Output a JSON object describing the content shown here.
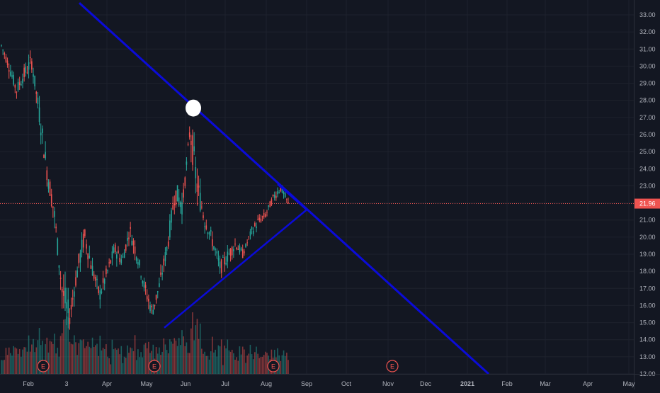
{
  "chart_data": {
    "type": "candlestick",
    "title": "",
    "ylim": [
      12,
      33.6
    ],
    "y_ticks": [
      "33.00",
      "32.00",
      "31.00",
      "30.00",
      "29.00",
      "28.00",
      "27.00",
      "26.00",
      "25.00",
      "24.00",
      "23.00",
      "22.00",
      "21.00",
      "20.00",
      "19.00",
      "18.00",
      "17.00",
      "16.00",
      "15.00",
      "14.00",
      "13.00",
      "12.00"
    ],
    "x_labels": [
      "Feb",
      "3",
      "Apr",
      "May",
      "Jun",
      "Jul",
      "Aug",
      "Sep",
      "Oct",
      "Nov",
      "Dec",
      "2021",
      "Feb",
      "Mar",
      "Apr",
      "May"
    ],
    "last_price_label": "21.96",
    "last_price": 21.96,
    "earnings_marker_label": "E",
    "earnings_markers_at": [
      "Feb",
      "May",
      "Aug",
      "Nov"
    ],
    "price_series": [
      {
        "t": "Jan",
        "o": 30.8,
        "h": 31.7,
        "l": 30.2,
        "c": 31.2
      },
      {
        "t": "Jan",
        "o": 31.2,
        "h": 31.6,
        "l": 29.6,
        "c": 30.0
      },
      {
        "t": "Jan",
        "o": 30.0,
        "h": 30.3,
        "l": 28.2,
        "c": 28.6
      },
      {
        "t": "Feb",
        "o": 28.6,
        "h": 29.8,
        "l": 27.3,
        "c": 29.5
      },
      {
        "t": "Feb",
        "o": 29.5,
        "h": 31.3,
        "l": 28.7,
        "c": 30.3
      },
      {
        "t": "Feb",
        "o": 30.3,
        "h": 30.6,
        "l": 27.0,
        "c": 27.3
      },
      {
        "t": "Feb",
        "o": 27.3,
        "h": 27.5,
        "l": 23.8,
        "c": 24.0
      },
      {
        "t": "Mar",
        "o": 24.0,
        "h": 24.4,
        "l": 21.0,
        "c": 21.4
      },
      {
        "t": "Mar",
        "o": 21.4,
        "h": 21.6,
        "l": 16.5,
        "c": 17.0
      },
      {
        "t": "Mar",
        "o": 17.0,
        "h": 17.4,
        "l": 14.6,
        "c": 15.2
      },
      {
        "t": "Mar",
        "o": 15.2,
        "h": 18.3,
        "l": 14.8,
        "c": 17.9
      },
      {
        "t": "Mar",
        "o": 17.9,
        "h": 20.6,
        "l": 17.4,
        "c": 20.1
      },
      {
        "t": "Apr",
        "o": 20.1,
        "h": 20.3,
        "l": 17.6,
        "c": 18.2
      },
      {
        "t": "Apr",
        "o": 18.2,
        "h": 18.6,
        "l": 16.0,
        "c": 16.6
      },
      {
        "t": "Apr",
        "o": 16.6,
        "h": 18.4,
        "l": 16.3,
        "c": 17.9
      },
      {
        "t": "Apr",
        "o": 17.9,
        "h": 19.8,
        "l": 17.5,
        "c": 19.3
      },
      {
        "t": "May",
        "o": 19.3,
        "h": 20.1,
        "l": 18.2,
        "c": 18.6
      },
      {
        "t": "May",
        "o": 18.6,
        "h": 20.9,
        "l": 18.3,
        "c": 20.4
      },
      {
        "t": "May",
        "o": 20.4,
        "h": 20.6,
        "l": 18.5,
        "c": 18.9
      },
      {
        "t": "May",
        "o": 18.9,
        "h": 19.1,
        "l": 16.6,
        "c": 17.0
      },
      {
        "t": "May",
        "o": 17.0,
        "h": 17.2,
        "l": 15.1,
        "c": 15.6
      },
      {
        "t": "May",
        "o": 15.6,
        "h": 17.7,
        "l": 15.3,
        "c": 17.3
      },
      {
        "t": "May",
        "o": 17.3,
        "h": 19.9,
        "l": 17.0,
        "c": 19.5
      },
      {
        "t": "Jun",
        "o": 19.5,
        "h": 23.0,
        "l": 19.2,
        "c": 22.6
      },
      {
        "t": "Jun",
        "o": 22.6,
        "h": 23.4,
        "l": 21.3,
        "c": 21.9
      },
      {
        "t": "Jun",
        "o": 21.9,
        "h": 26.8,
        "l": 21.6,
        "c": 26.3
      },
      {
        "t": "Jun",
        "o": 26.3,
        "h": 26.4,
        "l": 22.4,
        "c": 22.8
      },
      {
        "t": "Jun",
        "o": 22.8,
        "h": 23.0,
        "l": 20.6,
        "c": 21.0
      },
      {
        "t": "Jun",
        "o": 21.0,
        "h": 21.6,
        "l": 19.3,
        "c": 19.7
      },
      {
        "t": "Jul",
        "o": 19.7,
        "h": 20.0,
        "l": 17.7,
        "c": 18.2
      },
      {
        "t": "Jul",
        "o": 18.2,
        "h": 19.3,
        "l": 17.3,
        "c": 18.9
      },
      {
        "t": "Jul",
        "o": 18.9,
        "h": 20.0,
        "l": 18.4,
        "c": 19.6
      },
      {
        "t": "Jul",
        "o": 19.6,
        "h": 19.8,
        "l": 18.7,
        "c": 19.0
      },
      {
        "t": "Jul",
        "o": 19.0,
        "h": 20.5,
        "l": 18.8,
        "c": 20.2
      },
      {
        "t": "Jul",
        "o": 20.2,
        "h": 21.2,
        "l": 19.9,
        "c": 20.9
      },
      {
        "t": "Aug",
        "o": 20.9,
        "h": 21.6,
        "l": 20.4,
        "c": 21.3
      },
      {
        "t": "Aug",
        "o": 21.3,
        "h": 22.6,
        "l": 21.0,
        "c": 22.3
      },
      {
        "t": "Aug",
        "o": 22.3,
        "h": 23.2,
        "l": 21.9,
        "c": 22.9
      },
      {
        "t": "Aug",
        "o": 22.9,
        "h": 23.0,
        "l": 21.8,
        "c": 21.96
      }
    ],
    "volume_note": "",
    "trendlines": [
      {
        "name": "",
        "color": "#0b0bd8"
      },
      {
        "name": "",
        "color": "#0b0bd8"
      },
      {
        "name": "",
        "color": "#0b0bd8"
      }
    ],
    "colors": {
      "background": "#131722",
      "up": "#26a69a",
      "down": "#ef5350",
      "up_volume": "#26a69a80",
      "down_volume": "#ef535080",
      "grid": "#1e222d",
      "axis_text": "#b2b5be",
      "last_price_line": "#ef5350",
      "last_price_badge": "#ef5350",
      "trendline": "#0b0bd8",
      "marker": "#ffffff"
    }
  }
}
